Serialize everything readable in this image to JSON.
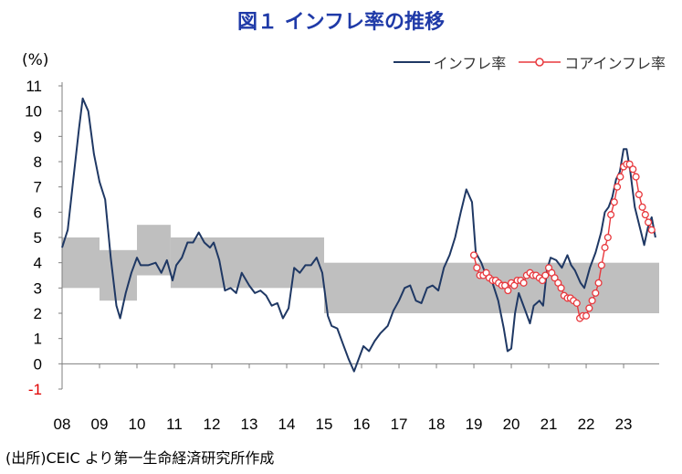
{
  "title": "図１ インフレ率の推移",
  "unit_label": "(%)",
  "source": "(出所)CEIC より第一生命経済研究所作成",
  "colors": {
    "inflation": "#1f3864",
    "core": "#e8383d",
    "band": "#bfbfbf",
    "title": "#1f3aa8"
  },
  "chart_data": {
    "type": "line",
    "title": "図１ インフレ率の推移",
    "ylabel": "(%)",
    "xlabel": "",
    "ylim": [
      -1,
      11
    ],
    "yticks": [
      "-1",
      "0",
      "1",
      "2",
      "3",
      "4",
      "5",
      "6",
      "7",
      "8",
      "9",
      "10",
      "11"
    ],
    "xticks": [
      "08",
      "09",
      "10",
      "11",
      "12",
      "13",
      "14",
      "15",
      "16",
      "17",
      "18",
      "19",
      "20",
      "21",
      "22",
      "23"
    ],
    "xlim": [
      2008.0,
      2023.95
    ],
    "legend_position": "top-right",
    "grid": false,
    "target_band": [
      {
        "x": [
          2008.0,
          2009.0
        ],
        "low": 3.0,
        "high": 5.0
      },
      {
        "x": [
          2009.0,
          2010.0
        ],
        "low": 2.5,
        "high": 4.5
      },
      {
        "x": [
          2010.0,
          2010.9
        ],
        "low": 3.5,
        "high": 5.5
      },
      {
        "x": [
          2010.9,
          2015.0
        ],
        "low": 3.0,
        "high": 5.0
      },
      {
        "x": [
          2015.0,
          2023.95
        ],
        "low": 2.0,
        "high": 4.0
      }
    ],
    "series": [
      {
        "name": "インフレ率",
        "color": "#1f3864",
        "marker": "none",
        "points": [
          [
            2008.0,
            4.6
          ],
          [
            2008.15,
            5.3
          ],
          [
            2008.3,
            7.3
          ],
          [
            2008.45,
            9.3
          ],
          [
            2008.55,
            10.5
          ],
          [
            2008.7,
            10.0
          ],
          [
            2008.85,
            8.3
          ],
          [
            2009.0,
            7.2
          ],
          [
            2009.15,
            6.5
          ],
          [
            2009.3,
            4.2
          ],
          [
            2009.45,
            2.3
          ],
          [
            2009.55,
            1.8
          ],
          [
            2009.7,
            2.8
          ],
          [
            2009.85,
            3.6
          ],
          [
            2010.0,
            4.2
          ],
          [
            2010.1,
            3.9
          ],
          [
            2010.3,
            3.9
          ],
          [
            2010.5,
            4.0
          ],
          [
            2010.65,
            3.6
          ],
          [
            2010.8,
            4.1
          ],
          [
            2010.95,
            3.3
          ],
          [
            2011.05,
            3.9
          ],
          [
            2011.2,
            4.2
          ],
          [
            2011.35,
            4.8
          ],
          [
            2011.5,
            4.8
          ],
          [
            2011.65,
            5.2
          ],
          [
            2011.8,
            4.8
          ],
          [
            2011.95,
            4.6
          ],
          [
            2012.05,
            4.8
          ],
          [
            2012.2,
            4.1
          ],
          [
            2012.35,
            2.9
          ],
          [
            2012.5,
            3.0
          ],
          [
            2012.65,
            2.8
          ],
          [
            2012.8,
            3.6
          ],
          [
            2013.0,
            3.1
          ],
          [
            2013.15,
            2.8
          ],
          [
            2013.3,
            2.9
          ],
          [
            2013.45,
            2.7
          ],
          [
            2013.6,
            2.3
          ],
          [
            2013.75,
            2.4
          ],
          [
            2013.9,
            1.8
          ],
          [
            2014.05,
            2.2
          ],
          [
            2014.2,
            3.8
          ],
          [
            2014.35,
            3.6
          ],
          [
            2014.5,
            3.9
          ],
          [
            2014.65,
            3.9
          ],
          [
            2014.8,
            4.2
          ],
          [
            2014.95,
            3.6
          ],
          [
            2015.1,
            1.9
          ],
          [
            2015.2,
            1.5
          ],
          [
            2015.35,
            1.4
          ],
          [
            2015.5,
            0.8
          ],
          [
            2015.65,
            0.2
          ],
          [
            2015.8,
            -0.3
          ],
          [
            2015.95,
            0.3
          ],
          [
            2016.05,
            0.7
          ],
          [
            2016.2,
            0.5
          ],
          [
            2016.35,
            0.9
          ],
          [
            2016.5,
            1.2
          ],
          [
            2016.7,
            1.5
          ],
          [
            2016.85,
            2.1
          ],
          [
            2017.0,
            2.5
          ],
          [
            2017.15,
            3.0
          ],
          [
            2017.3,
            3.1
          ],
          [
            2017.45,
            2.5
          ],
          [
            2017.6,
            2.4
          ],
          [
            2017.75,
            3.0
          ],
          [
            2017.9,
            3.1
          ],
          [
            2018.05,
            2.9
          ],
          [
            2018.2,
            3.8
          ],
          [
            2018.35,
            4.3
          ],
          [
            2018.5,
            5.0
          ],
          [
            2018.65,
            6.0
          ],
          [
            2018.8,
            6.9
          ],
          [
            2018.95,
            6.4
          ],
          [
            2019.05,
            4.4
          ],
          [
            2019.2,
            4.0
          ],
          [
            2019.35,
            3.4
          ],
          [
            2019.5,
            3.2
          ],
          [
            2019.65,
            2.5
          ],
          [
            2019.8,
            1.4
          ],
          [
            2019.9,
            0.5
          ],
          [
            2020.0,
            0.6
          ],
          [
            2020.1,
            2.0
          ],
          [
            2020.2,
            2.8
          ],
          [
            2020.35,
            2.2
          ],
          [
            2020.5,
            1.6
          ],
          [
            2020.6,
            2.3
          ],
          [
            2020.75,
            2.5
          ],
          [
            2020.85,
            2.3
          ],
          [
            2020.95,
            3.7
          ],
          [
            2021.05,
            4.2
          ],
          [
            2021.2,
            4.1
          ],
          [
            2021.35,
            3.8
          ],
          [
            2021.5,
            4.3
          ],
          [
            2021.6,
            3.9
          ],
          [
            2021.7,
            3.7
          ],
          [
            2021.85,
            3.2
          ],
          [
            2021.95,
            3.0
          ],
          [
            2022.1,
            3.8
          ],
          [
            2022.25,
            4.4
          ],
          [
            2022.4,
            5.2
          ],
          [
            2022.5,
            6.0
          ],
          [
            2022.6,
            6.2
          ],
          [
            2022.7,
            6.6
          ],
          [
            2022.8,
            7.3
          ],
          [
            2022.9,
            7.6
          ],
          [
            2023.0,
            8.5
          ],
          [
            2023.08,
            8.5
          ],
          [
            2023.18,
            7.6
          ],
          [
            2023.3,
            6.2
          ],
          [
            2023.45,
            5.3
          ],
          [
            2023.55,
            4.7
          ],
          [
            2023.65,
            5.4
          ],
          [
            2023.75,
            5.8
          ],
          [
            2023.85,
            5.0
          ]
        ]
      },
      {
        "name": "コアインフレ率",
        "color": "#e8383d",
        "marker": "circle",
        "points": [
          [
            2019.0,
            4.3
          ],
          [
            2019.08,
            3.8
          ],
          [
            2019.16,
            3.5
          ],
          [
            2019.25,
            3.5
          ],
          [
            2019.33,
            3.6
          ],
          [
            2019.41,
            3.4
          ],
          [
            2019.5,
            3.3
          ],
          [
            2019.58,
            3.3
          ],
          [
            2019.66,
            3.2
          ],
          [
            2019.75,
            3.1
          ],
          [
            2019.83,
            3.1
          ],
          [
            2019.91,
            2.9
          ],
          [
            2020.0,
            3.2
          ],
          [
            2020.08,
            3.1
          ],
          [
            2020.16,
            3.3
          ],
          [
            2020.25,
            3.3
          ],
          [
            2020.33,
            3.2
          ],
          [
            2020.41,
            3.5
          ],
          [
            2020.5,
            3.6
          ],
          [
            2020.58,
            3.5
          ],
          [
            2020.66,
            3.5
          ],
          [
            2020.75,
            3.4
          ],
          [
            2020.83,
            3.3
          ],
          [
            2020.91,
            3.5
          ],
          [
            2021.0,
            3.8
          ],
          [
            2021.08,
            3.6
          ],
          [
            2021.16,
            3.4
          ],
          [
            2021.25,
            3.2
          ],
          [
            2021.33,
            3.0
          ],
          [
            2021.41,
            2.7
          ],
          [
            2021.5,
            2.6
          ],
          [
            2021.58,
            2.6
          ],
          [
            2021.66,
            2.5
          ],
          [
            2021.75,
            2.4
          ],
          [
            2021.83,
            1.8
          ],
          [
            2021.91,
            1.9
          ],
          [
            2022.0,
            1.9
          ],
          [
            2022.08,
            2.2
          ],
          [
            2022.16,
            2.5
          ],
          [
            2022.25,
            2.8
          ],
          [
            2022.33,
            3.2
          ],
          [
            2022.41,
            3.9
          ],
          [
            2022.5,
            4.6
          ],
          [
            2022.58,
            5.0
          ],
          [
            2022.66,
            5.9
          ],
          [
            2022.75,
            6.4
          ],
          [
            2022.83,
            7.0
          ],
          [
            2022.91,
            7.4
          ],
          [
            2023.0,
            7.8
          ],
          [
            2023.08,
            7.9
          ],
          [
            2023.16,
            7.9
          ],
          [
            2023.25,
            7.7
          ],
          [
            2023.33,
            7.4
          ],
          [
            2023.41,
            6.7
          ],
          [
            2023.5,
            6.2
          ],
          [
            2023.58,
            5.9
          ],
          [
            2023.66,
            5.6
          ],
          [
            2023.75,
            5.3
          ]
        ]
      }
    ]
  }
}
